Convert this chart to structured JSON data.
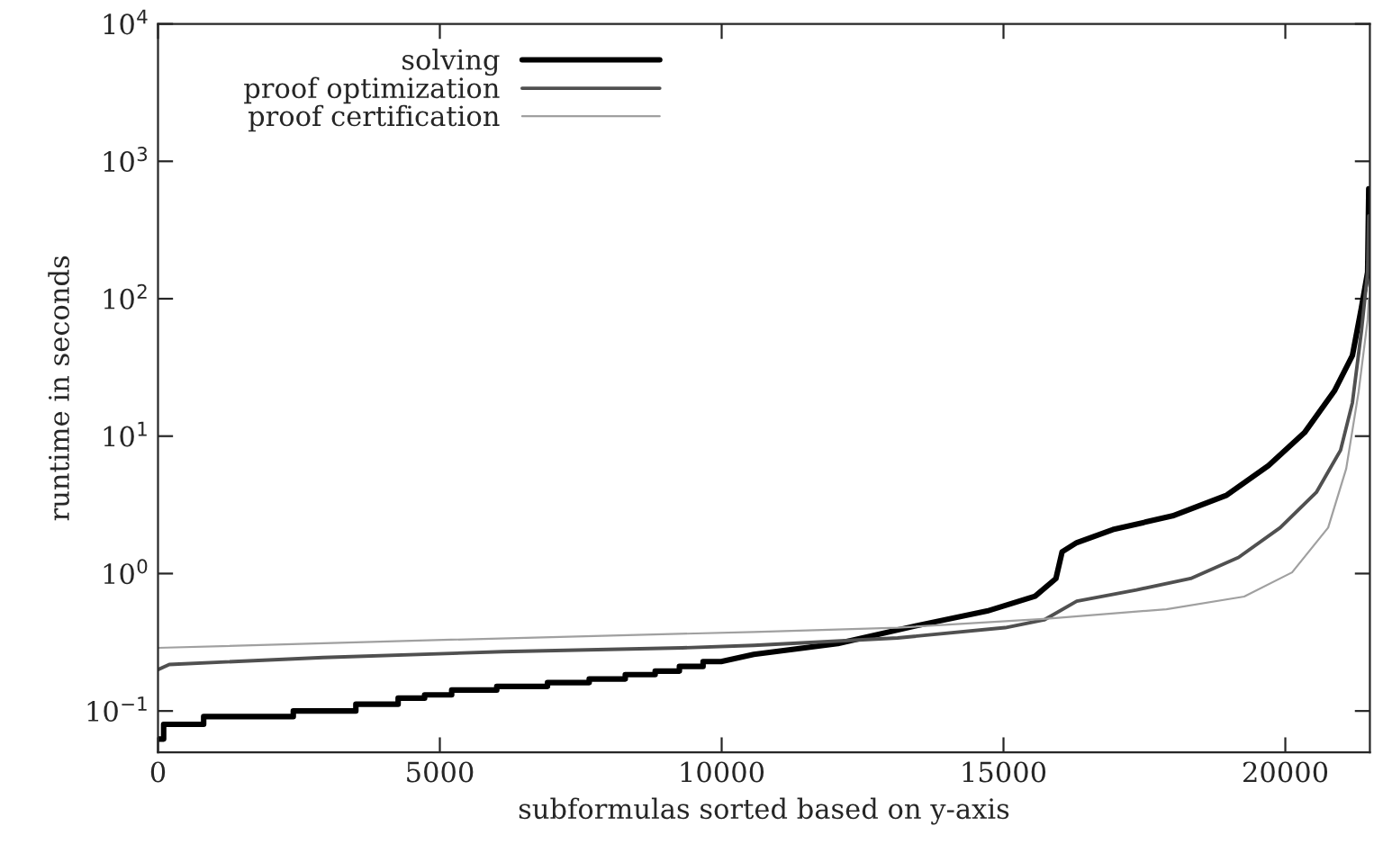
{
  "chart_data": {
    "type": "line",
    "xlabel": "subformulas sorted based on y-axis",
    "ylabel": "runtime in seconds",
    "log": "y",
    "xlim": [
      0,
      21500
    ],
    "xticks": [
      0,
      5000,
      10000,
      15000,
      20000
    ],
    "ylim": [
      0.05,
      10000
    ],
    "yticks": [
      {
        "value": 0.1,
        "label": "10$^{−1}$"
      },
      {
        "value": 1,
        "label": "10$^{0}$"
      },
      {
        "value": 10,
        "label": "10$^{1}$"
      },
      {
        "value": 100,
        "label": "10$^{2}$"
      },
      {
        "value": 1000,
        "label": "10$^{3}$"
      },
      {
        "value": 10000,
        "label": "10$^{4}$"
      }
    ],
    "grid": false,
    "legend": "top",
    "marker": "none",
    "line_style": "solid",
    "series": [
      {
        "name": "solving",
        "color": "#000000",
        "x": [
          0,
          100,
          100,
          810,
          810,
          2400,
          2400,
          3510,
          3510,
          4260,
          4260,
          4730,
          4730,
          5210,
          5210,
          6010,
          6010,
          6910,
          6910,
          7650,
          7650,
          8290,
          8290,
          8820,
          8820,
          9250,
          9250,
          9670,
          9670,
          9990,
          10570,
          12060,
          13440,
          14710,
          15560,
          15930,
          16040,
          16300,
          16940,
          18000,
          18960,
          19700,
          20340,
          20870,
          21190,
          21350,
          21460,
          21480
        ],
        "values": [
          0.0625,
          0.0625,
          0.08,
          0.08,
          0.091,
          0.091,
          0.1,
          0.1,
          0.112,
          0.112,
          0.124,
          0.124,
          0.131,
          0.131,
          0.142,
          0.142,
          0.151,
          0.151,
          0.161,
          0.161,
          0.171,
          0.171,
          0.184,
          0.184,
          0.195,
          0.195,
          0.211,
          0.211,
          0.229,
          0.229,
          0.258,
          0.309,
          0.416,
          0.534,
          0.684,
          0.92,
          1.44,
          1.68,
          2.09,
          2.63,
          3.72,
          6.1,
          10.6,
          21.3,
          38.6,
          86,
          156,
          630
        ]
      },
      {
        "name": "proof optimization",
        "color": "#505050",
        "x": [
          0,
          200,
          2930,
          6110,
          9300,
          10570,
          13120,
          15030,
          15720,
          16300,
          17360,
          18320,
          19170,
          19910,
          20550,
          20980,
          21190,
          21350,
          21460,
          21480
        ],
        "values": [
          0.2,
          0.218,
          0.245,
          0.27,
          0.288,
          0.3,
          0.34,
          0.404,
          0.46,
          0.63,
          0.76,
          0.92,
          1.31,
          2.16,
          3.9,
          7.9,
          17.5,
          57.8,
          156,
          400
        ]
      },
      {
        "name": "proof certification",
        "color": "#a0a0a0",
        "x": [
          0,
          5200,
          10570,
          13120,
          15770,
          17890,
          19270,
          20120,
          20760,
          21080,
          21300,
          21460,
          21480
        ],
        "values": [
          0.288,
          0.33,
          0.376,
          0.404,
          0.47,
          0.55,
          0.68,
          1.02,
          2.16,
          5.8,
          21,
          70,
          100
        ]
      }
    ]
  }
}
